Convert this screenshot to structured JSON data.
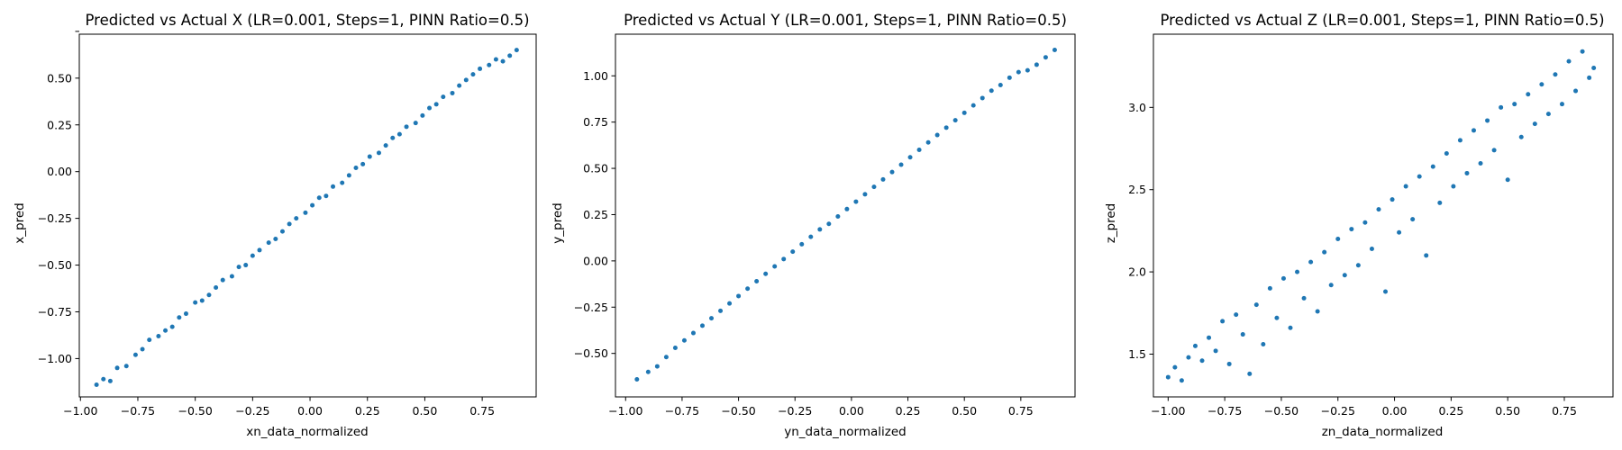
{
  "chart_data": [
    {
      "type": "scatter",
      "title": "Predicted vs Actual X (LR=0.001, Steps=1, PINN Ratio=0.5)",
      "xlabel": "xn_data_normalized",
      "ylabel": "x_pred",
      "xlim": [
        -1.005,
        0.985
      ],
      "ylim": [
        -1.205,
        0.735
      ],
      "xticks": [
        -1.0,
        -0.75,
        -0.5,
        -0.25,
        0.0,
        0.25,
        0.5,
        0.75
      ],
      "yticks": [
        -1.0,
        -0.75,
        -0.5,
        -0.25,
        0.0,
        0.25,
        0.5,
        0.75
      ],
      "xtick_labels": [
        "−1.00",
        "−0.75",
        "−0.50",
        "−0.25",
        "0.00",
        "0.25",
        "0.50",
        "0.75"
      ],
      "ytick_labels": [
        "−1.00",
        "−0.75",
        "−0.50",
        "−0.25",
        "0.00",
        "0.25",
        "0.50"
      ],
      "grid": false,
      "marker_color": "#1f77b4",
      "points": [
        [
          -0.93,
          -1.14
        ],
        [
          -0.9,
          -1.11
        ],
        [
          -0.87,
          -1.12
        ],
        [
          -0.84,
          -1.05
        ],
        [
          -0.8,
          -1.04
        ],
        [
          -0.76,
          -0.98
        ],
        [
          -0.73,
          -0.95
        ],
        [
          -0.7,
          -0.9
        ],
        [
          -0.66,
          -0.88
        ],
        [
          -0.63,
          -0.85
        ],
        [
          -0.6,
          -0.83
        ],
        [
          -0.57,
          -0.78
        ],
        [
          -0.54,
          -0.76
        ],
        [
          -0.5,
          -0.7
        ],
        [
          -0.47,
          -0.69
        ],
        [
          -0.44,
          -0.66
        ],
        [
          -0.41,
          -0.62
        ],
        [
          -0.38,
          -0.58
        ],
        [
          -0.34,
          -0.56
        ],
        [
          -0.31,
          -0.51
        ],
        [
          -0.28,
          -0.5
        ],
        [
          -0.25,
          -0.45
        ],
        [
          -0.22,
          -0.42
        ],
        [
          -0.18,
          -0.38
        ],
        [
          -0.15,
          -0.36
        ],
        [
          -0.12,
          -0.32
        ],
        [
          -0.09,
          -0.28
        ],
        [
          -0.06,
          -0.25
        ],
        [
          -0.02,
          -0.22
        ],
        [
          0.01,
          -0.18
        ],
        [
          0.04,
          -0.14
        ],
        [
          0.07,
          -0.13
        ],
        [
          0.1,
          -0.08
        ],
        [
          0.14,
          -0.06
        ],
        [
          0.17,
          -0.02
        ],
        [
          0.2,
          0.02
        ],
        [
          0.23,
          0.04
        ],
        [
          0.26,
          0.08
        ],
        [
          0.3,
          0.1
        ],
        [
          0.33,
          0.14
        ],
        [
          0.36,
          0.18
        ],
        [
          0.39,
          0.2
        ],
        [
          0.42,
          0.24
        ],
        [
          0.46,
          0.26
        ],
        [
          0.49,
          0.3
        ],
        [
          0.52,
          0.34
        ],
        [
          0.55,
          0.36
        ],
        [
          0.58,
          0.4
        ],
        [
          0.62,
          0.42
        ],
        [
          0.65,
          0.46
        ],
        [
          0.68,
          0.49
        ],
        [
          0.71,
          0.52
        ],
        [
          0.74,
          0.55
        ],
        [
          0.78,
          0.57
        ],
        [
          0.81,
          0.6
        ],
        [
          0.84,
          0.59
        ],
        [
          0.87,
          0.62
        ],
        [
          0.9,
          0.65
        ]
      ]
    },
    {
      "type": "scatter",
      "title": "Predicted vs Actual Y (LR=0.001, Steps=1, PINN Ratio=0.5)",
      "xlabel": "yn_data_normalized",
      "ylabel": "y_pred",
      "xlim": [
        -1.045,
        0.99
      ],
      "ylim": [
        -0.735,
        1.225
      ],
      "xticks": [
        -1.0,
        -0.75,
        -0.5,
        -0.25,
        0.0,
        0.25,
        0.5,
        0.75
      ],
      "yticks": [
        -0.5,
        -0.25,
        0.0,
        0.25,
        0.5,
        0.75,
        1.0
      ],
      "xtick_labels": [
        "−1.00",
        "−0.75",
        "−0.50",
        "−0.25",
        "0.00",
        "0.25",
        "0.50",
        "0.75"
      ],
      "ytick_labels": [
        "−0.50",
        "−0.25",
        "0.00",
        "0.25",
        "0.50",
        "0.75",
        "1.00"
      ],
      "grid": false,
      "marker_color": "#1f77b4",
      "points": [
        [
          -0.95,
          -0.64
        ],
        [
          -0.9,
          -0.6
        ],
        [
          -0.86,
          -0.57
        ],
        [
          -0.82,
          -0.52
        ],
        [
          -0.78,
          -0.47
        ],
        [
          -0.74,
          -0.43
        ],
        [
          -0.7,
          -0.39
        ],
        [
          -0.66,
          -0.35
        ],
        [
          -0.62,
          -0.31
        ],
        [
          -0.58,
          -0.27
        ],
        [
          -0.54,
          -0.23
        ],
        [
          -0.5,
          -0.19
        ],
        [
          -0.46,
          -0.15
        ],
        [
          -0.42,
          -0.11
        ],
        [
          -0.38,
          -0.07
        ],
        [
          -0.34,
          -0.03
        ],
        [
          -0.3,
          0.01
        ],
        [
          -0.26,
          0.05
        ],
        [
          -0.22,
          0.09
        ],
        [
          -0.18,
          0.13
        ],
        [
          -0.14,
          0.17
        ],
        [
          -0.1,
          0.2
        ],
        [
          -0.06,
          0.24
        ],
        [
          -0.02,
          0.28
        ],
        [
          0.02,
          0.32
        ],
        [
          0.06,
          0.36
        ],
        [
          0.1,
          0.4
        ],
        [
          0.14,
          0.44
        ],
        [
          0.18,
          0.48
        ],
        [
          0.22,
          0.52
        ],
        [
          0.26,
          0.56
        ],
        [
          0.3,
          0.6
        ],
        [
          0.34,
          0.64
        ],
        [
          0.38,
          0.68
        ],
        [
          0.42,
          0.72
        ],
        [
          0.46,
          0.76
        ],
        [
          0.5,
          0.8
        ],
        [
          0.54,
          0.84
        ],
        [
          0.58,
          0.88
        ],
        [
          0.62,
          0.92
        ],
        [
          0.66,
          0.95
        ],
        [
          0.7,
          0.99
        ],
        [
          0.74,
          1.02
        ],
        [
          0.78,
          1.03
        ],
        [
          0.82,
          1.06
        ],
        [
          0.86,
          1.1
        ],
        [
          0.9,
          1.14
        ]
      ]
    },
    {
      "type": "scatter",
      "title": "Predicted vs Actual Z (LR=0.001, Steps=1, PINN Ratio=0.5)",
      "xlabel": "zn_data_normalized",
      "ylabel": "z_pred",
      "xlim": [
        -1.065,
        0.965
      ],
      "ylim": [
        1.24,
        3.445
      ],
      "xticks": [
        -1.0,
        -0.75,
        -0.5,
        -0.25,
        0.0,
        0.25,
        0.5,
        0.75
      ],
      "yticks": [
        1.5,
        2.0,
        2.5,
        3.0
      ],
      "xtick_labels": [
        "−1.00",
        "−0.75",
        "−0.50",
        "−0.25",
        "0.00",
        "0.25",
        "0.50",
        "0.75"
      ],
      "ytick_labels": [
        "1.5",
        "2.0",
        "2.5",
        "3.0"
      ],
      "grid": false,
      "marker_color": "#1f77b4",
      "points": [
        [
          -1.0,
          1.36
        ],
        [
          -0.97,
          1.42
        ],
        [
          -0.94,
          1.34
        ],
        [
          -0.91,
          1.48
        ],
        [
          -0.88,
          1.55
        ],
        [
          -0.85,
          1.46
        ],
        [
          -0.82,
          1.6
        ],
        [
          -0.79,
          1.52
        ],
        [
          -0.76,
          1.7
        ],
        [
          -0.73,
          1.44
        ],
        [
          -0.7,
          1.74
        ],
        [
          -0.67,
          1.62
        ],
        [
          -0.64,
          1.38
        ],
        [
          -0.61,
          1.8
        ],
        [
          -0.58,
          1.56
        ],
        [
          -0.55,
          1.9
        ],
        [
          -0.52,
          1.72
        ],
        [
          -0.49,
          1.96
        ],
        [
          -0.46,
          1.66
        ],
        [
          -0.43,
          2.0
        ],
        [
          -0.4,
          1.84
        ],
        [
          -0.37,
          2.06
        ],
        [
          -0.34,
          1.76
        ],
        [
          -0.31,
          2.12
        ],
        [
          -0.28,
          1.92
        ],
        [
          -0.25,
          2.2
        ],
        [
          -0.22,
          1.98
        ],
        [
          -0.19,
          2.26
        ],
        [
          -0.16,
          2.04
        ],
        [
          -0.13,
          2.3
        ],
        [
          -0.1,
          2.14
        ],
        [
          -0.07,
          2.38
        ],
        [
          -0.04,
          1.88
        ],
        [
          -0.01,
          2.44
        ],
        [
          0.02,
          2.24
        ],
        [
          0.05,
          2.52
        ],
        [
          0.08,
          2.32
        ],
        [
          0.11,
          2.58
        ],
        [
          0.14,
          2.1
        ],
        [
          0.17,
          2.64
        ],
        [
          0.2,
          2.42
        ],
        [
          0.23,
          2.72
        ],
        [
          0.26,
          2.52
        ],
        [
          0.29,
          2.8
        ],
        [
          0.32,
          2.6
        ],
        [
          0.35,
          2.86
        ],
        [
          0.38,
          2.66
        ],
        [
          0.41,
          2.92
        ],
        [
          0.44,
          2.74
        ],
        [
          0.47,
          3.0
        ],
        [
          0.5,
          2.56
        ],
        [
          0.53,
          3.02
        ],
        [
          0.56,
          2.82
        ],
        [
          0.59,
          3.08
        ],
        [
          0.62,
          2.9
        ],
        [
          0.65,
          3.14
        ],
        [
          0.68,
          2.96
        ],
        [
          0.71,
          3.2
        ],
        [
          0.74,
          3.02
        ],
        [
          0.77,
          3.28
        ],
        [
          0.8,
          3.1
        ],
        [
          0.83,
          3.34
        ],
        [
          0.86,
          3.18
        ],
        [
          0.88,
          3.24
        ]
      ]
    }
  ]
}
